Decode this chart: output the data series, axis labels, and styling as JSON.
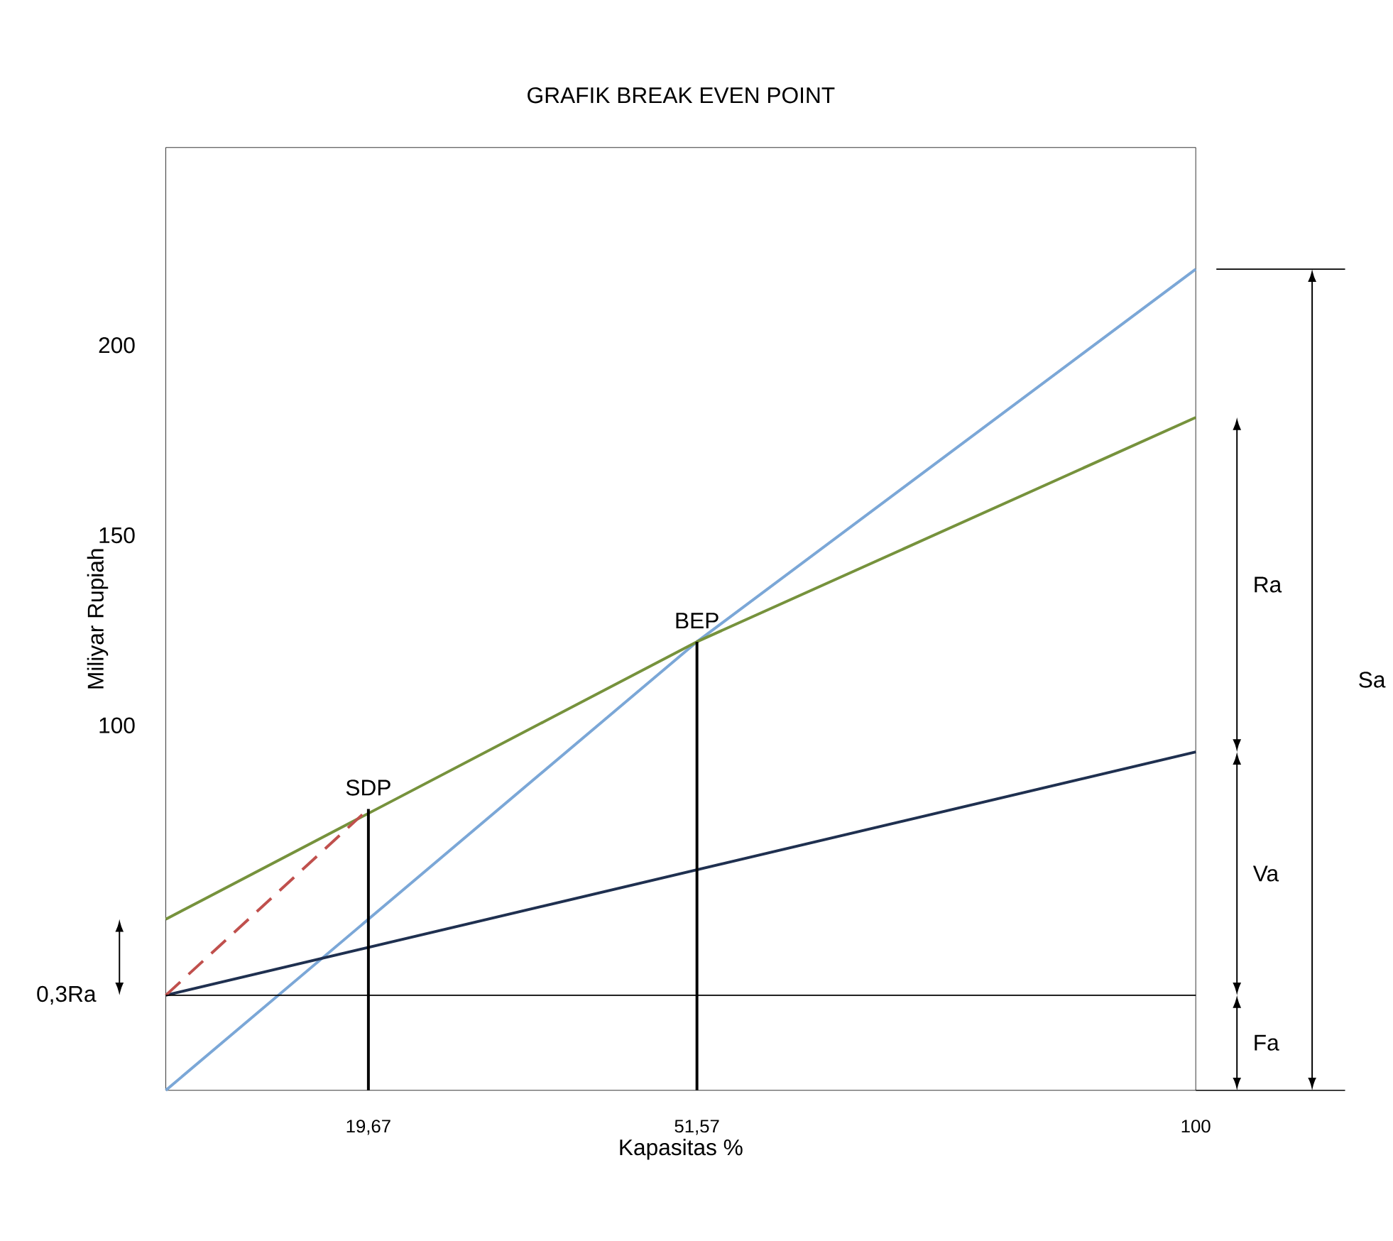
{
  "chart_data": {
    "type": "line",
    "title": "GRAFIK BREAK EVEN POINT",
    "xlabel": "Kapasitas %",
    "ylabel": "Miliyar Rupiah",
    "xlim": [
      0,
      100
    ],
    "ylim": [
      4,
      252
    ],
    "xticks": [
      {
        "value": 19.67,
        "label": "19,67"
      },
      {
        "value": 51.57,
        "label": "51,57"
      },
      {
        "value": 100,
        "label": "100"
      }
    ],
    "yticks": [
      100,
      150,
      200
    ],
    "series": [
      {
        "color": "#7ba7d7",
        "x": [
          0,
          51.57,
          100
        ],
        "values": [
          4,
          122,
          220
        ]
      },
      {
        "color": "#76923c",
        "x": [
          0,
          51.57,
          100
        ],
        "values": [
          49,
          122,
          181
        ]
      },
      {
        "color": "#1f3050",
        "x": [
          0,
          100
        ],
        "values": [
          29,
          93
        ]
      },
      {
        "color": "#c0504d",
        "line_style": "dashed",
        "x": [
          0,
          19.67
        ],
        "values": [
          29,
          78
        ]
      },
      {
        "color": "#000000",
        "x": [
          19.67,
          19.67
        ],
        "values": [
          4,
          78
        ]
      },
      {
        "color": "#000000",
        "x": [
          51.57,
          51.57
        ],
        "values": [
          4,
          122
        ]
      }
    ],
    "ref_lines": [
      {
        "axis": "y",
        "value": 29,
        "color": "#000000"
      }
    ],
    "annotations": [
      {
        "text": "BEP",
        "x": 51.57,
        "y": 122
      },
      {
        "text": "SDP",
        "x": 19.67,
        "y": 78
      },
      "Ra",
      "Va",
      "Fa",
      "Sa",
      "0,3Ra"
    ]
  }
}
